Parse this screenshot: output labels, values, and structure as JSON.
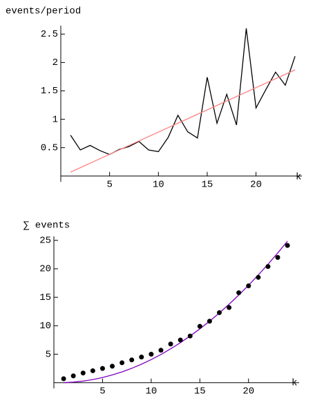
{
  "chart_data": [
    {
      "type": "line",
      "y_label": "events/period",
      "x_label": "k",
      "xlim": [
        0,
        24.7
      ],
      "ylim": [
        -0.1,
        2.65
      ],
      "xticks": [
        5,
        10,
        15,
        20
      ],
      "yticks": [
        0.5,
        1,
        1.5,
        2,
        2.5
      ],
      "series": [
        {
          "type": "line",
          "color": "#000000",
          "x": [
            1,
            2,
            3,
            4,
            5,
            6,
            7,
            8,
            9,
            10,
            11,
            12,
            13,
            14,
            15,
            16,
            17,
            18,
            19,
            20,
            21,
            22,
            23,
            24
          ],
          "values": [
            0.72,
            0.46,
            0.54,
            0.45,
            0.38,
            0.47,
            0.52,
            0.61,
            0.46,
            0.43,
            0.68,
            1.07,
            0.78,
            0.67,
            1.74,
            0.93,
            1.44,
            0.9,
            2.6,
            1.2,
            1.52,
            1.83,
            1.6,
            2.11
          ]
        },
        {
          "type": "line",
          "color": "#ff7f7f",
          "x": [
            1,
            24
          ],
          "values": [
            0.07,
            1.87
          ]
        }
      ]
    },
    {
      "type": "scatter",
      "y_label": "∑ events",
      "x_label": "k",
      "xlim": [
        0,
        25.2
      ],
      "ylim": [
        -1,
        25.7
      ],
      "xticks": [
        5,
        10,
        15,
        20
      ],
      "yticks": [
        5,
        10,
        15,
        20,
        25
      ],
      "series": [
        {
          "type": "line",
          "color": "#8000c0",
          "x": [
            1,
            2,
            3,
            4,
            5,
            6,
            7,
            8,
            9,
            10,
            11,
            12,
            13,
            14,
            15,
            16,
            17,
            18,
            19,
            20,
            21,
            22,
            23,
            24
          ],
          "values": [
            0.01,
            0.1,
            0.28,
            0.55,
            0.91,
            1.36,
            1.9,
            2.53,
            3.25,
            4.06,
            4.96,
            5.95,
            7.03,
            8.2,
            9.46,
            10.81,
            12.25,
            13.78,
            15.4,
            17.11,
            18.91,
            20.8,
            22.78,
            24.85
          ]
        },
        {
          "type": "scatter",
          "color": "#000000",
          "x": [
            1,
            2,
            3,
            4,
            5,
            6,
            7,
            8,
            9,
            10,
            11,
            12,
            13,
            14,
            15,
            16,
            17,
            18,
            19,
            20,
            21,
            22,
            23,
            24
          ],
          "values": [
            0.7,
            1.2,
            1.7,
            2.1,
            2.5,
            2.9,
            3.5,
            4.0,
            4.5,
            5.0,
            5.7,
            6.8,
            7.5,
            8.2,
            9.9,
            10.8,
            12.3,
            13.2,
            15.8,
            17.0,
            18.5,
            20.4,
            22.0,
            24.1
          ]
        }
      ]
    }
  ]
}
